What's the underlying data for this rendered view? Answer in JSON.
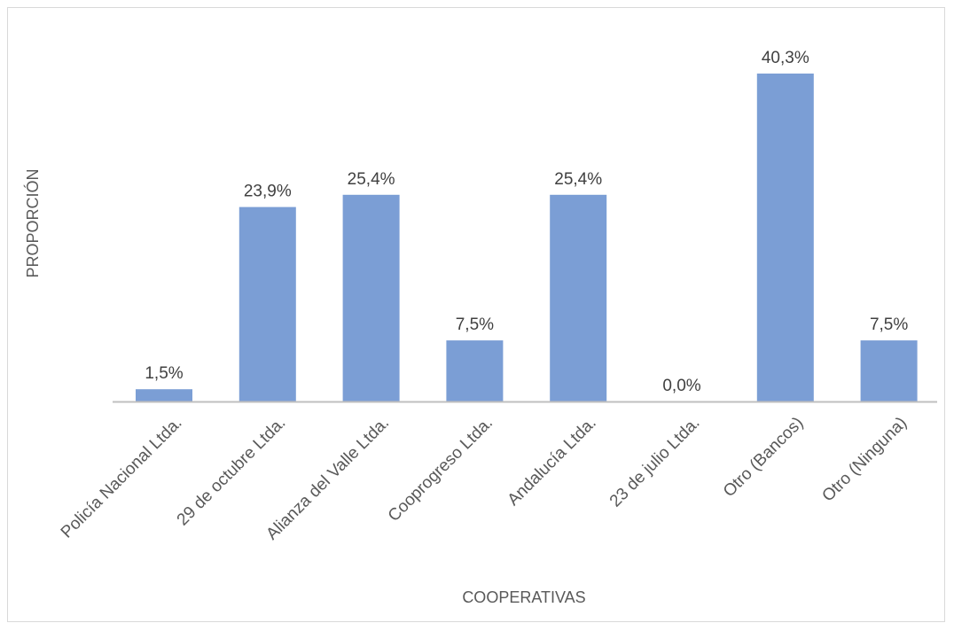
{
  "chart_data": {
    "type": "bar",
    "title": "",
    "xlabel": "COOPERATIVAS",
    "ylabel": "PROPORCIÓN",
    "categories": [
      "Policía Nacional Ltda.",
      "29 de octubre Ltda.",
      "Alianza del Valle Ltda.",
      "Cooprogreso Ltda.",
      "Andalucía Ltda.",
      "23 de julio Ltda.",
      "Otro (Bancos)",
      "Otro (Ninguna)"
    ],
    "values": [
      1.5,
      23.9,
      25.4,
      7.5,
      25.4,
      0.0,
      40.3,
      7.5
    ],
    "data_labels": [
      "1,5%",
      "23,9%",
      "25,4%",
      "7,5%",
      "25,4%",
      "0,0%",
      "40,3%",
      "7,5%"
    ],
    "ylim": [
      0,
      40.3
    ],
    "grid": false,
    "legend": "none",
    "colors": {
      "bar": "#7b9ed5",
      "axis": "#bfbfbf",
      "border": "#d9d9d9"
    }
  }
}
